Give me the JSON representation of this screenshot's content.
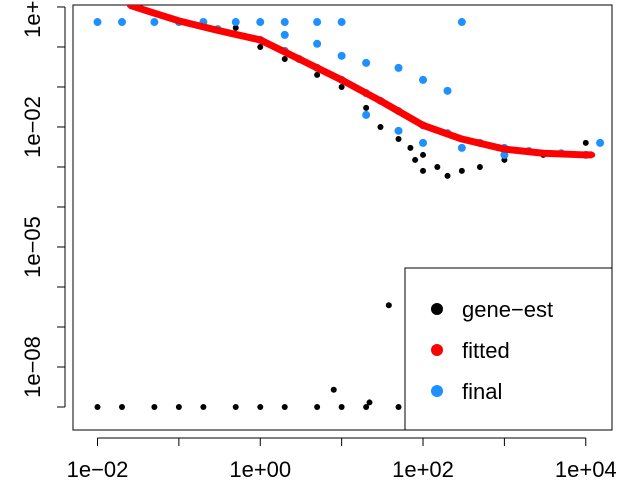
{
  "chart_data": {
    "type": "scatter",
    "xlog": true,
    "ylog": true,
    "xlim": [
      0.005,
      21000
    ],
    "ylim": [
      2.66e-10,
      11.2
    ],
    "xticks": [
      {
        "value": 0.01,
        "label": "1e−02"
      },
      {
        "value": 1,
        "label": "1e+00"
      },
      {
        "value": 100,
        "label": "1e+02"
      },
      {
        "value": 10000,
        "label": "1e+04"
      }
    ],
    "xminor_ticks": [
      0.1,
      10,
      1000
    ],
    "yticks": [
      {
        "value": 10,
        "label": "1e+01"
      },
      {
        "value": 0.01,
        "label": "1e−02"
      },
      {
        "value": 1e-05,
        "label": "1e−05"
      },
      {
        "value": 1e-08,
        "label": "1e−08"
      }
    ],
    "yminor_ticks": [
      1,
      0.1,
      0.001,
      0.0001,
      1e-06,
      1e-07,
      1e-09
    ],
    "legend": "bottom-right",
    "series": [
      {
        "name": "gene−est",
        "color": "#000000",
        "x": [
          0.5,
          1,
          2,
          5,
          10,
          20,
          30,
          50,
          70,
          80,
          100,
          100,
          150,
          200,
          300,
          500,
          1000,
          3000,
          10000,
          38,
          8,
          22,
          0.01,
          0.02,
          0.05,
          0.1,
          0.2,
          0.5,
          1,
          2,
          5,
          10,
          20,
          50
        ],
        "values": [
          3,
          1,
          0.5,
          0.2,
          0.1,
          0.03,
          0.01,
          0.005,
          0.003,
          0.0015,
          0.002,
          0.0008,
          0.001,
          0.0006,
          0.0008,
          0.001,
          0.0015,
          0.002,
          0.004,
          3.5e-07,
          2.7e-09,
          1.3e-09,
          1e-09,
          1e-09,
          1e-09,
          1e-09,
          1e-09,
          1e-09,
          1e-09,
          1e-09,
          1e-09,
          1e-09,
          1e-09,
          1e-09
        ]
      },
      {
        "name": "fitted",
        "color": "#ff0000",
        "x": [
          0.025,
          0.05,
          0.1,
          0.3,
          1,
          3,
          10,
          30,
          100,
          300,
          1000,
          3000,
          10000,
          12000
        ],
        "values": [
          11,
          7,
          4.5,
          2.6,
          1.5,
          0.5,
          0.15,
          0.045,
          0.011,
          0.005,
          0.0028,
          0.0022,
          0.002,
          0.002
        ]
      },
      {
        "name": "final",
        "color": "#1e90ff",
        "x": [
          0.01,
          0.02,
          0.05,
          0.1,
          0.2,
          0.5,
          1,
          2,
          5,
          10,
          300,
          0.3,
          1,
          2,
          3,
          5,
          10,
          20,
          30,
          50,
          100,
          200,
          500,
          1000,
          2000,
          5000,
          10000,
          2,
          5,
          10,
          20,
          50,
          100,
          200,
          20,
          50,
          100,
          300,
          1000,
          15000
        ],
        "values": [
          4.2,
          4.2,
          4.2,
          4.2,
          4.2,
          4.2,
          4.2,
          4.2,
          4.2,
          4.2,
          4.2,
          2.8,
          1.5,
          0.8,
          0.5,
          0.3,
          0.15,
          0.07,
          0.045,
          0.025,
          0.011,
          0.007,
          0.004,
          0.003,
          0.0025,
          0.0022,
          0.002,
          2,
          1.2,
          0.6,
          0.4,
          0.3,
          0.15,
          0.08,
          0.02,
          0.008,
          0.004,
          0.003,
          0.002,
          0.004
        ]
      }
    ]
  }
}
